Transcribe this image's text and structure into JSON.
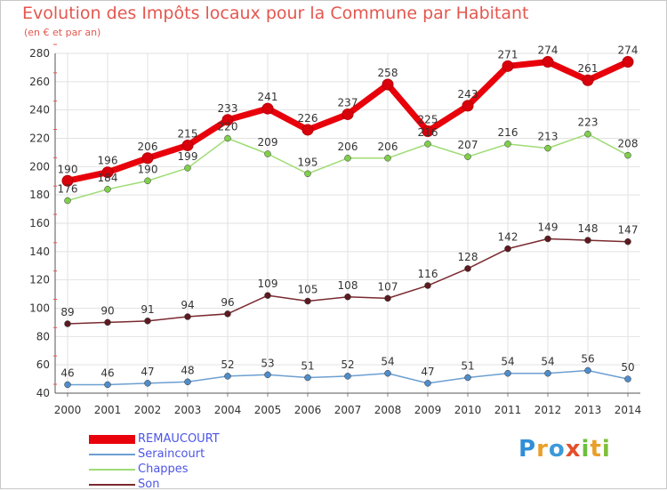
{
  "header": {
    "title": "Evolution des Impôts locaux pour la Commune par Habitant",
    "subtitle": "(en € et par an)"
  },
  "logo": {
    "text": "Proxiti"
  },
  "chart_data": {
    "type": "line",
    "title": "Evolution des Impôts locaux pour la Commune par Habitant",
    "subtitle": "(en € et par an)",
    "xlabel": "",
    "ylabel": "",
    "ylim": [
      40,
      280
    ],
    "yticks": [
      40,
      60,
      80,
      100,
      120,
      140,
      160,
      180,
      200,
      220,
      240,
      260,
      280
    ],
    "grid": true,
    "legend_position": "bottom-left",
    "x": [
      "2000",
      "2001",
      "2002",
      "2003",
      "2004",
      "2005",
      "2006",
      "2007",
      "2008",
      "2009",
      "2010",
      "2011",
      "2012",
      "2013",
      "2014"
    ],
    "series": [
      {
        "name": "REMAUCOURT",
        "color": "#e8000b",
        "marker": "#d8000a",
        "values": [
          190,
          196,
          206,
          215,
          233,
          241,
          226,
          237,
          258,
          225,
          243,
          271,
          274,
          261,
          274
        ]
      },
      {
        "name": "Seraincourt",
        "color": "#6c9fd2",
        "marker": "#4f8ccb",
        "values": [
          46,
          46,
          47,
          48,
          52,
          53,
          51,
          52,
          54,
          47,
          51,
          54,
          54,
          56,
          50
        ]
      },
      {
        "name": "Chappes",
        "color": "#9fdc75",
        "marker": "#7fcf4a",
        "values": [
          176,
          184,
          190,
          199,
          220,
          209,
          195,
          206,
          206,
          216,
          207,
          216,
          213,
          223,
          208
        ]
      },
      {
        "name": "Son",
        "color": "#7a2a30",
        "marker": "#5e1a20",
        "values": [
          89,
          90,
          91,
          94,
          96,
          109,
          105,
          108,
          107,
          116,
          128,
          142,
          149,
          148,
          147
        ]
      }
    ]
  }
}
